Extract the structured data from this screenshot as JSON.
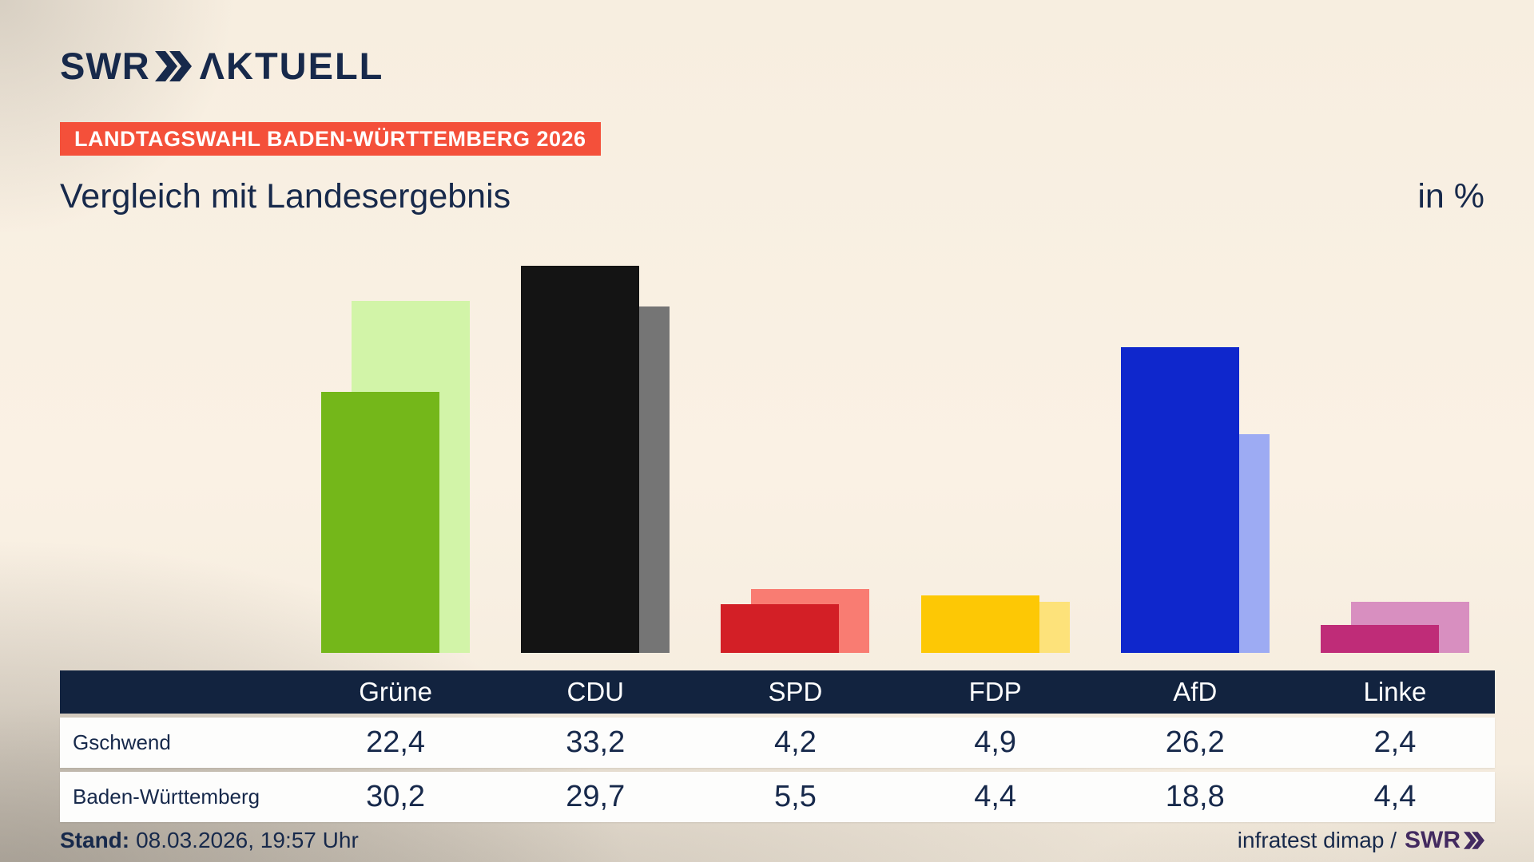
{
  "brand": {
    "logo_swr": "SWR",
    "logo_aktuell": "ΛKTUELL"
  },
  "banner": {
    "text": "LANDTAGSWAHL BADEN-WÜRTTEMBERG 2026",
    "bg": "#f4503a"
  },
  "title": "Vergleich mit Landesergebnis",
  "unit_label": "in %",
  "chart_data": {
    "type": "bar",
    "categories": [
      "Grüne",
      "CDU",
      "SPD",
      "FDP",
      "AfD",
      "Linke"
    ],
    "series": [
      {
        "name": "Gschwend",
        "values": [
          22.4,
          33.2,
          4.2,
          4.9,
          26.2,
          2.4
        ]
      },
      {
        "name": "Baden-Württemberg",
        "values": [
          30.2,
          29.7,
          5.5,
          4.4,
          18.8,
          4.4
        ]
      }
    ],
    "colors_front": [
      "#74b71a",
      "#141414",
      "#d31f26",
      "#fdc805",
      "#0f27cc",
      "#bf2c78"
    ],
    "colors_back": [
      "#d2f4a8",
      "#757575",
      "#f97c72",
      "#fde27a",
      "#9dabf3",
      "#d88fc0"
    ],
    "ylim": [
      0,
      35
    ],
    "unit": "%",
    "grid": false,
    "legend": "table-rows"
  },
  "table": {
    "rows": [
      {
        "label": "Gschwend",
        "values": [
          "22,4",
          "33,2",
          "4,2",
          "4,9",
          "26,2",
          "2,4"
        ]
      },
      {
        "label": "Baden-Württemberg",
        "values": [
          "30,2",
          "29,7",
          "5,5",
          "4,4",
          "18,8",
          "4,4"
        ]
      }
    ]
  },
  "footer": {
    "stand_label": "Stand:",
    "stand_value": "08.03.2026, 19:57 Uhr",
    "source": "infratest dimap /",
    "source_brand": "SWR"
  },
  "colors": {
    "navy": "#17294b",
    "header_bg": "#12233f",
    "banner_red": "#f4503a",
    "brand_purple": "#432a60",
    "background_cream": "#faf1e4"
  }
}
